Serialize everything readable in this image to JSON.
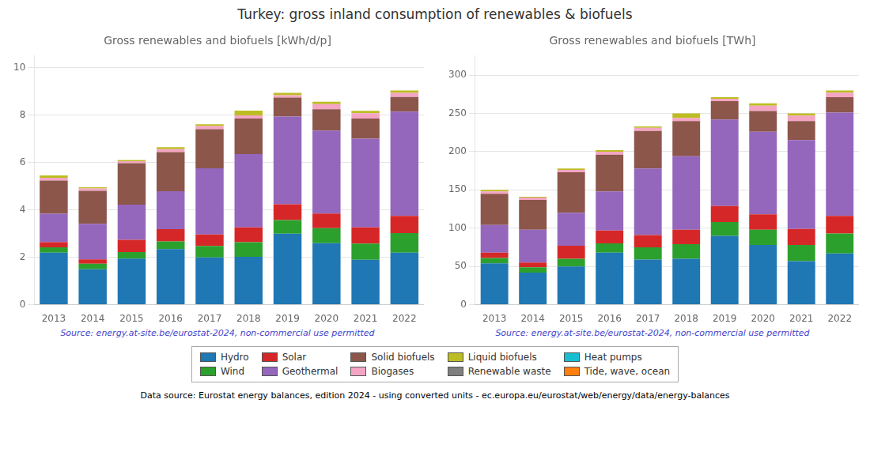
{
  "title": "Turkey: gross inland consumption of renewables & biofuels",
  "annotations": [
    "Data source: Eurostat energy balances, edition 2024 - using converted units - ec.europa.eu/eurostat/web/energy/data/energy-balances"
  ],
  "legend": "bottom",
  "chart_data": [
    {
      "type": "bar",
      "title": "Gross renewables and biofuels [kWh/d/p]",
      "stacked": true,
      "grid": true,
      "annotations": [
        "Source: energy.at-site.be/eurostat-2024, non-commercial use permitted"
      ],
      "categories": [
        "2013",
        "2014",
        "2015",
        "2016",
        "2017",
        "2018",
        "2019",
        "2020",
        "2021",
        "2022"
      ],
      "ylim": [
        0,
        10.5
      ],
      "yticks": [
        0,
        2,
        4,
        6,
        8,
        10
      ],
      "series": [
        {
          "name": "Hydro",
          "color": "#1f77b4",
          "values": [
            2.2,
            1.5,
            1.95,
            2.35,
            2.0,
            2.02,
            3.0,
            2.6,
            1.9,
            2.2
          ]
        },
        {
          "name": "Wind",
          "color": "#2ca02c",
          "values": [
            0.22,
            0.23,
            0.27,
            0.32,
            0.48,
            0.62,
            0.57,
            0.63,
            0.68,
            0.82
          ]
        },
        {
          "name": "Solar",
          "color": "#d62728",
          "values": [
            0.22,
            0.18,
            0.52,
            0.52,
            0.48,
            0.62,
            0.67,
            0.62,
            0.68,
            0.73
          ]
        },
        {
          "name": "Geothermal",
          "color": "#9467bd",
          "values": [
            1.2,
            1.5,
            1.48,
            1.6,
            2.8,
            3.1,
            3.7,
            3.5,
            3.75,
            4.4
          ]
        },
        {
          "name": "Solid biofuels",
          "color": "#8c564b",
          "values": [
            1.4,
            1.4,
            1.75,
            1.65,
            1.65,
            1.5,
            0.8,
            0.9,
            0.85,
            0.62
          ]
        },
        {
          "name": "Biogases",
          "color": "#f4a5c4",
          "values": [
            0.12,
            0.1,
            0.09,
            0.13,
            0.13,
            0.13,
            0.1,
            0.22,
            0.22,
            0.17
          ]
        },
        {
          "name": "Liquid biofuels",
          "color": "#bcbd22",
          "values": [
            0.1,
            0.05,
            0.05,
            0.08,
            0.08,
            0.2,
            0.1,
            0.1,
            0.1,
            0.1
          ]
        },
        {
          "name": "Renewable waste",
          "color": "#7f7f7f",
          "values": [
            0.0,
            0.0,
            0.0,
            0.0,
            0.0,
            0.0,
            0.0,
            0.0,
            0.0,
            0.0
          ]
        },
        {
          "name": "Heat pumps",
          "color": "#17becf",
          "values": [
            0.0,
            0.0,
            0.0,
            0.0,
            0.0,
            0.0,
            0.0,
            0.0,
            0.0,
            0.0
          ]
        },
        {
          "name": "Tide, wave, ocean",
          "color": "#ff7f0e",
          "values": [
            0.0,
            0.0,
            0.0,
            0.0,
            0.0,
            0.0,
            0.0,
            0.0,
            0.0,
            0.0
          ]
        }
      ]
    },
    {
      "type": "bar",
      "title": "Gross renewables and biofuels [TWh]",
      "stacked": true,
      "grid": true,
      "annotations": [
        "Source: energy.at-site.be/eurostat-2024, non-commercial use permitted"
      ],
      "categories": [
        "2013",
        "2014",
        "2015",
        "2016",
        "2017",
        "2018",
        "2019",
        "2020",
        "2021",
        "2022"
      ],
      "ylim": [
        0,
        325
      ],
      "yticks": [
        0,
        50,
        100,
        150,
        200,
        250,
        300
      ],
      "series": [
        {
          "name": "Hydro",
          "color": "#1f77b4",
          "values": [
            54,
            42,
            50,
            68,
            59,
            60,
            90,
            78,
            57,
            67
          ]
        },
        {
          "name": "Wind",
          "color": "#2ca02c",
          "values": [
            7,
            7,
            10,
            12,
            16,
            19,
            18,
            20,
            21,
            26
          ]
        },
        {
          "name": "Solar",
          "color": "#d62728",
          "values": [
            7,
            6,
            17,
            17,
            16,
            19,
            21,
            20,
            21,
            23
          ]
        },
        {
          "name": "Geothermal",
          "color": "#9467bd",
          "values": [
            36,
            43,
            43,
            51,
            87,
            96,
            113,
            108,
            116,
            135
          ]
        },
        {
          "name": "Solid biofuels",
          "color": "#8c564b",
          "values": [
            41,
            39,
            53,
            48,
            49,
            46,
            24,
            27,
            25,
            20
          ]
        },
        {
          "name": "Biogases",
          "color": "#f4a5c4",
          "values": [
            3,
            3,
            3,
            4,
            4,
            4,
            3,
            7,
            7,
            6
          ]
        },
        {
          "name": "Liquid biofuels",
          "color": "#bcbd22",
          "values": [
            2,
            1,
            2,
            2,
            2,
            6,
            2,
            3,
            3,
            3
          ]
        },
        {
          "name": "Renewable waste",
          "color": "#7f7f7f",
          "values": [
            0,
            0,
            0,
            0,
            0,
            0,
            0,
            0,
            0,
            0
          ]
        },
        {
          "name": "Heat pumps",
          "color": "#17becf",
          "values": [
            0,
            0,
            0,
            0,
            0,
            0,
            0,
            0,
            0,
            0
          ]
        },
        {
          "name": "Tide, wave, ocean",
          "color": "#ff7f0e",
          "values": [
            0,
            0,
            0,
            0,
            0,
            0,
            0,
            0,
            0,
            0
          ]
        }
      ]
    }
  ]
}
